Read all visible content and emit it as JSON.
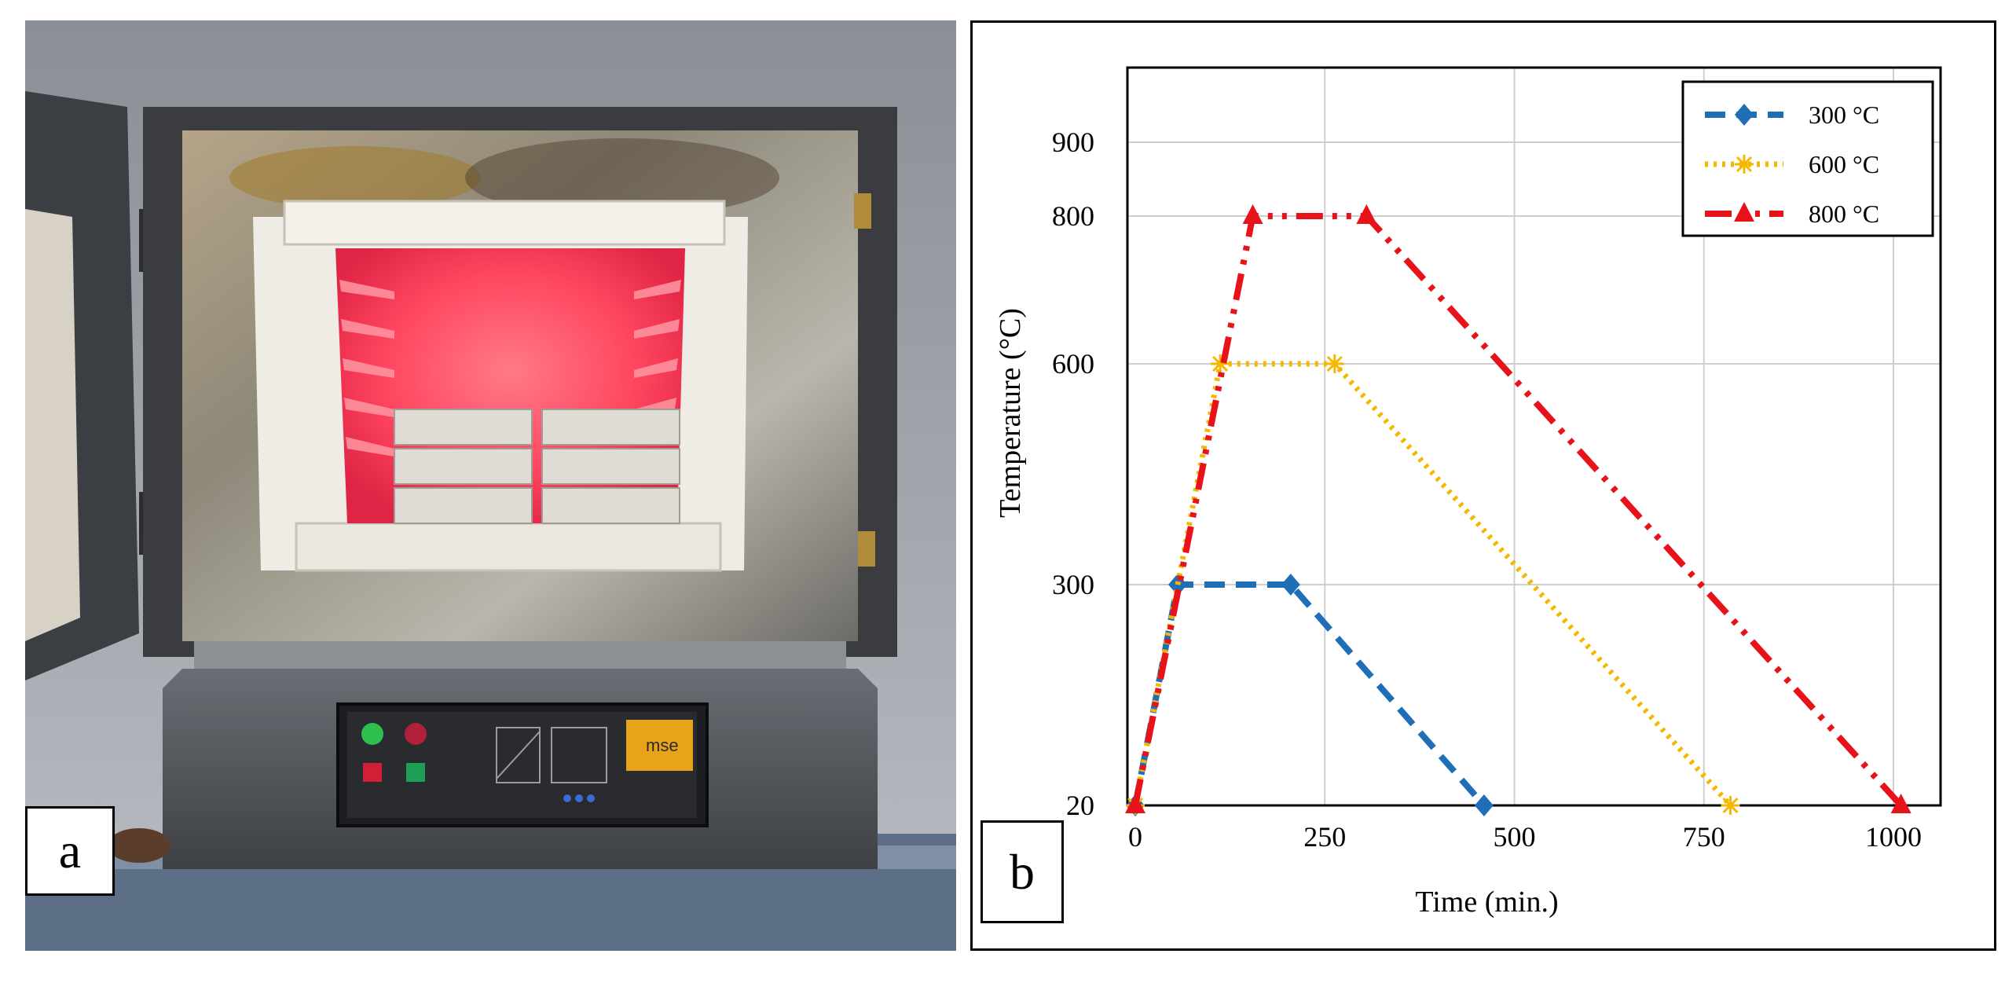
{
  "panels": {
    "a": {
      "label": "a"
    },
    "b": {
      "label": "b"
    }
  },
  "photo": {
    "description_icon": "muffle-furnace-photo",
    "control_panel": {
      "brand_label": "mse"
    }
  },
  "chart_data": {
    "type": "line",
    "xlabel": "Time (min.)",
    "ylabel": "Temperature (°C)",
    "xlim": [
      0,
      1100
    ],
    "ylim": [
      20,
      1000
    ],
    "x_ticks": [
      0,
      250,
      500,
      750,
      1000
    ],
    "y_ticks": [
      20,
      300,
      600,
      800,
      900
    ],
    "grid": true,
    "legend_position": "top-right",
    "series": [
      {
        "name": "300 °C",
        "color": "#1f6fb6",
        "line_style": "dashed",
        "marker": "diamond",
        "points": [
          [
            0,
            20
          ],
          [
            56,
            300
          ],
          [
            205,
            300
          ],
          [
            460,
            20
          ]
        ]
      },
      {
        "name": "600 °C",
        "color": "#f5b800",
        "line_style": "dotted",
        "marker": "star",
        "points": [
          [
            0,
            20
          ],
          [
            112,
            600
          ],
          [
            263,
            600
          ],
          [
            785,
            20
          ]
        ]
      },
      {
        "name": "800 °C",
        "color": "#e8121a",
        "line_style": "dash-dot-dot",
        "marker": "triangle",
        "points": [
          [
            0,
            20
          ],
          [
            155,
            800
          ],
          [
            305,
            800
          ],
          [
            1010,
            20
          ]
        ]
      }
    ]
  }
}
